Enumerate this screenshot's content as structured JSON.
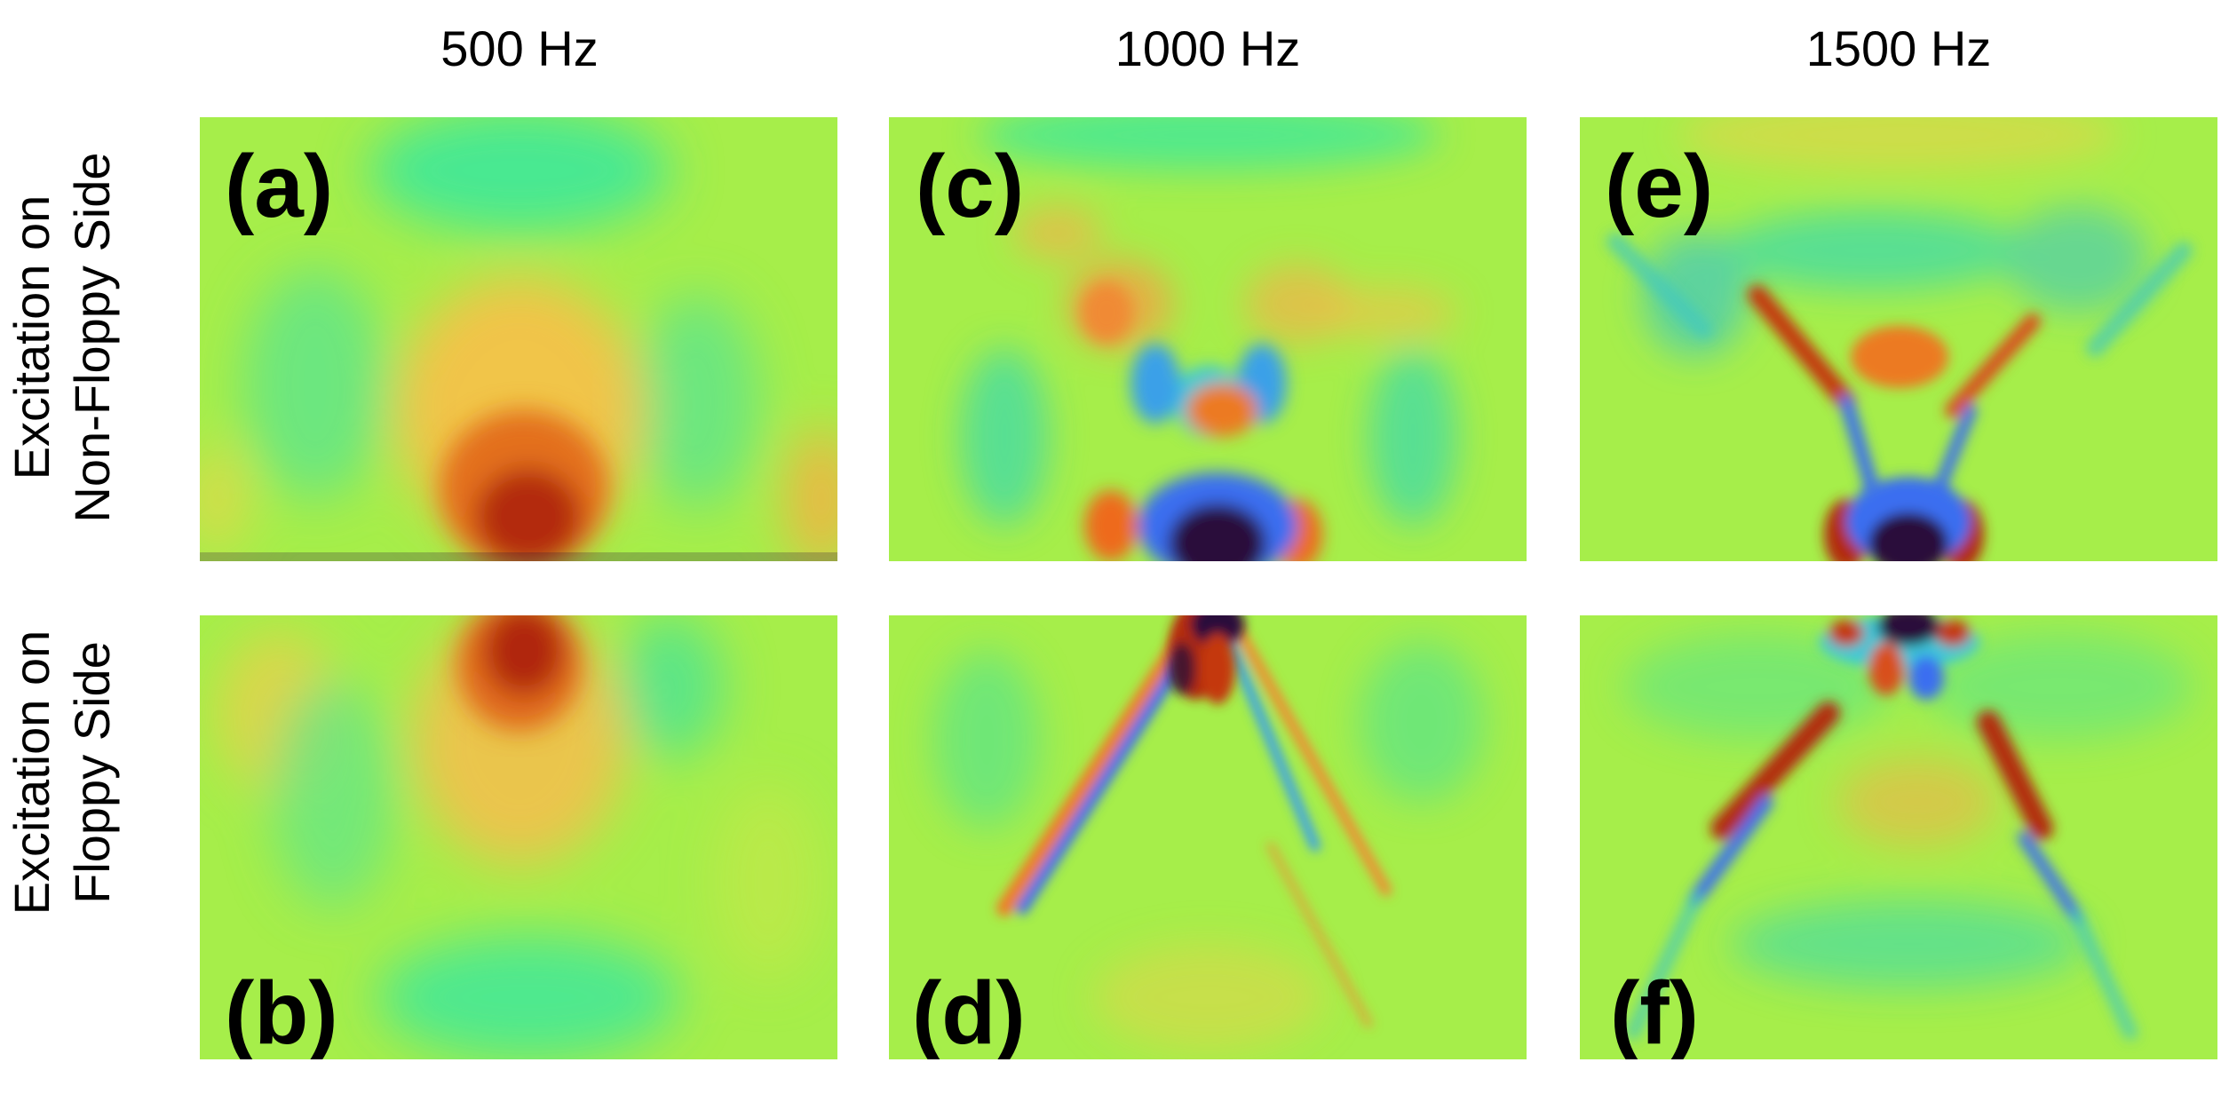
{
  "columns": [
    "500 Hz",
    "1000 Hz",
    "1500 Hz"
  ],
  "rows": [
    {
      "line1": "Excitation on",
      "line2": "Non-Floppy Side"
    },
    {
      "line1": "Excitation on",
      "line2": "Floppy Side"
    }
  ],
  "panels": {
    "a": {
      "label": "(a)",
      "frequency": "500 Hz",
      "excitation": "Non-Floppy Side"
    },
    "b": {
      "label": "(b)",
      "frequency": "500 Hz",
      "excitation": "Floppy Side"
    },
    "c": {
      "label": "(c)",
      "frequency": "1000 Hz",
      "excitation": "Non-Floppy Side"
    },
    "d": {
      "label": "(d)",
      "frequency": "1000 Hz",
      "excitation": "Floppy Side"
    },
    "e": {
      "label": "(e)",
      "frequency": "1500 Hz",
      "excitation": "Non-Floppy Side"
    },
    "f": {
      "label": "(f)",
      "frequency": "1500 Hz",
      "excitation": "Floppy Side"
    }
  },
  "colormap": {
    "background": "#a6ee4a",
    "cyan": "#2fe6a6",
    "blue": "#3a6ef0",
    "dark": "#2b0f3a",
    "orange": "#f5a03c",
    "red": "#b22a08"
  }
}
